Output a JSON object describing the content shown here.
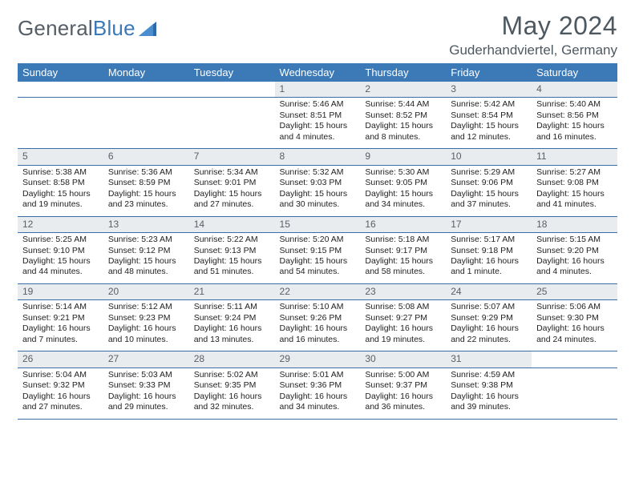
{
  "brand": {
    "part1": "General",
    "part2": "Blue"
  },
  "title": "May 2024",
  "location": "Guderhandviertel, Germany",
  "colors": {
    "header_bg": "#3b79b7",
    "header_fg": "#ffffff",
    "daynum_bg": "#e9ecef",
    "rule": "#3b6ea6",
    "title_fg": "#4d5860"
  },
  "weekdays": [
    "Sunday",
    "Monday",
    "Tuesday",
    "Wednesday",
    "Thursday",
    "Friday",
    "Saturday"
  ],
  "weeks": [
    [
      null,
      null,
      null,
      {
        "n": "1",
        "sr": "Sunrise: 5:46 AM",
        "ss": "Sunset: 8:51 PM",
        "dl": "Daylight: 15 hours and 4 minutes."
      },
      {
        "n": "2",
        "sr": "Sunrise: 5:44 AM",
        "ss": "Sunset: 8:52 PM",
        "dl": "Daylight: 15 hours and 8 minutes."
      },
      {
        "n": "3",
        "sr": "Sunrise: 5:42 AM",
        "ss": "Sunset: 8:54 PM",
        "dl": "Daylight: 15 hours and 12 minutes."
      },
      {
        "n": "4",
        "sr": "Sunrise: 5:40 AM",
        "ss": "Sunset: 8:56 PM",
        "dl": "Daylight: 15 hours and 16 minutes."
      }
    ],
    [
      {
        "n": "5",
        "sr": "Sunrise: 5:38 AM",
        "ss": "Sunset: 8:58 PM",
        "dl": "Daylight: 15 hours and 19 minutes."
      },
      {
        "n": "6",
        "sr": "Sunrise: 5:36 AM",
        "ss": "Sunset: 8:59 PM",
        "dl": "Daylight: 15 hours and 23 minutes."
      },
      {
        "n": "7",
        "sr": "Sunrise: 5:34 AM",
        "ss": "Sunset: 9:01 PM",
        "dl": "Daylight: 15 hours and 27 minutes."
      },
      {
        "n": "8",
        "sr": "Sunrise: 5:32 AM",
        "ss": "Sunset: 9:03 PM",
        "dl": "Daylight: 15 hours and 30 minutes."
      },
      {
        "n": "9",
        "sr": "Sunrise: 5:30 AM",
        "ss": "Sunset: 9:05 PM",
        "dl": "Daylight: 15 hours and 34 minutes."
      },
      {
        "n": "10",
        "sr": "Sunrise: 5:29 AM",
        "ss": "Sunset: 9:06 PM",
        "dl": "Daylight: 15 hours and 37 minutes."
      },
      {
        "n": "11",
        "sr": "Sunrise: 5:27 AM",
        "ss": "Sunset: 9:08 PM",
        "dl": "Daylight: 15 hours and 41 minutes."
      }
    ],
    [
      {
        "n": "12",
        "sr": "Sunrise: 5:25 AM",
        "ss": "Sunset: 9:10 PM",
        "dl": "Daylight: 15 hours and 44 minutes."
      },
      {
        "n": "13",
        "sr": "Sunrise: 5:23 AM",
        "ss": "Sunset: 9:12 PM",
        "dl": "Daylight: 15 hours and 48 minutes."
      },
      {
        "n": "14",
        "sr": "Sunrise: 5:22 AM",
        "ss": "Sunset: 9:13 PM",
        "dl": "Daylight: 15 hours and 51 minutes."
      },
      {
        "n": "15",
        "sr": "Sunrise: 5:20 AM",
        "ss": "Sunset: 9:15 PM",
        "dl": "Daylight: 15 hours and 54 minutes."
      },
      {
        "n": "16",
        "sr": "Sunrise: 5:18 AM",
        "ss": "Sunset: 9:17 PM",
        "dl": "Daylight: 15 hours and 58 minutes."
      },
      {
        "n": "17",
        "sr": "Sunrise: 5:17 AM",
        "ss": "Sunset: 9:18 PM",
        "dl": "Daylight: 16 hours and 1 minute."
      },
      {
        "n": "18",
        "sr": "Sunrise: 5:15 AM",
        "ss": "Sunset: 9:20 PM",
        "dl": "Daylight: 16 hours and 4 minutes."
      }
    ],
    [
      {
        "n": "19",
        "sr": "Sunrise: 5:14 AM",
        "ss": "Sunset: 9:21 PM",
        "dl": "Daylight: 16 hours and 7 minutes."
      },
      {
        "n": "20",
        "sr": "Sunrise: 5:12 AM",
        "ss": "Sunset: 9:23 PM",
        "dl": "Daylight: 16 hours and 10 minutes."
      },
      {
        "n": "21",
        "sr": "Sunrise: 5:11 AM",
        "ss": "Sunset: 9:24 PM",
        "dl": "Daylight: 16 hours and 13 minutes."
      },
      {
        "n": "22",
        "sr": "Sunrise: 5:10 AM",
        "ss": "Sunset: 9:26 PM",
        "dl": "Daylight: 16 hours and 16 minutes."
      },
      {
        "n": "23",
        "sr": "Sunrise: 5:08 AM",
        "ss": "Sunset: 9:27 PM",
        "dl": "Daylight: 16 hours and 19 minutes."
      },
      {
        "n": "24",
        "sr": "Sunrise: 5:07 AM",
        "ss": "Sunset: 9:29 PM",
        "dl": "Daylight: 16 hours and 22 minutes."
      },
      {
        "n": "25",
        "sr": "Sunrise: 5:06 AM",
        "ss": "Sunset: 9:30 PM",
        "dl": "Daylight: 16 hours and 24 minutes."
      }
    ],
    [
      {
        "n": "26",
        "sr": "Sunrise: 5:04 AM",
        "ss": "Sunset: 9:32 PM",
        "dl": "Daylight: 16 hours and 27 minutes."
      },
      {
        "n": "27",
        "sr": "Sunrise: 5:03 AM",
        "ss": "Sunset: 9:33 PM",
        "dl": "Daylight: 16 hours and 29 minutes."
      },
      {
        "n": "28",
        "sr": "Sunrise: 5:02 AM",
        "ss": "Sunset: 9:35 PM",
        "dl": "Daylight: 16 hours and 32 minutes."
      },
      {
        "n": "29",
        "sr": "Sunrise: 5:01 AM",
        "ss": "Sunset: 9:36 PM",
        "dl": "Daylight: 16 hours and 34 minutes."
      },
      {
        "n": "30",
        "sr": "Sunrise: 5:00 AM",
        "ss": "Sunset: 9:37 PM",
        "dl": "Daylight: 16 hours and 36 minutes."
      },
      {
        "n": "31",
        "sr": "Sunrise: 4:59 AM",
        "ss": "Sunset: 9:38 PM",
        "dl": "Daylight: 16 hours and 39 minutes."
      },
      null
    ]
  ]
}
